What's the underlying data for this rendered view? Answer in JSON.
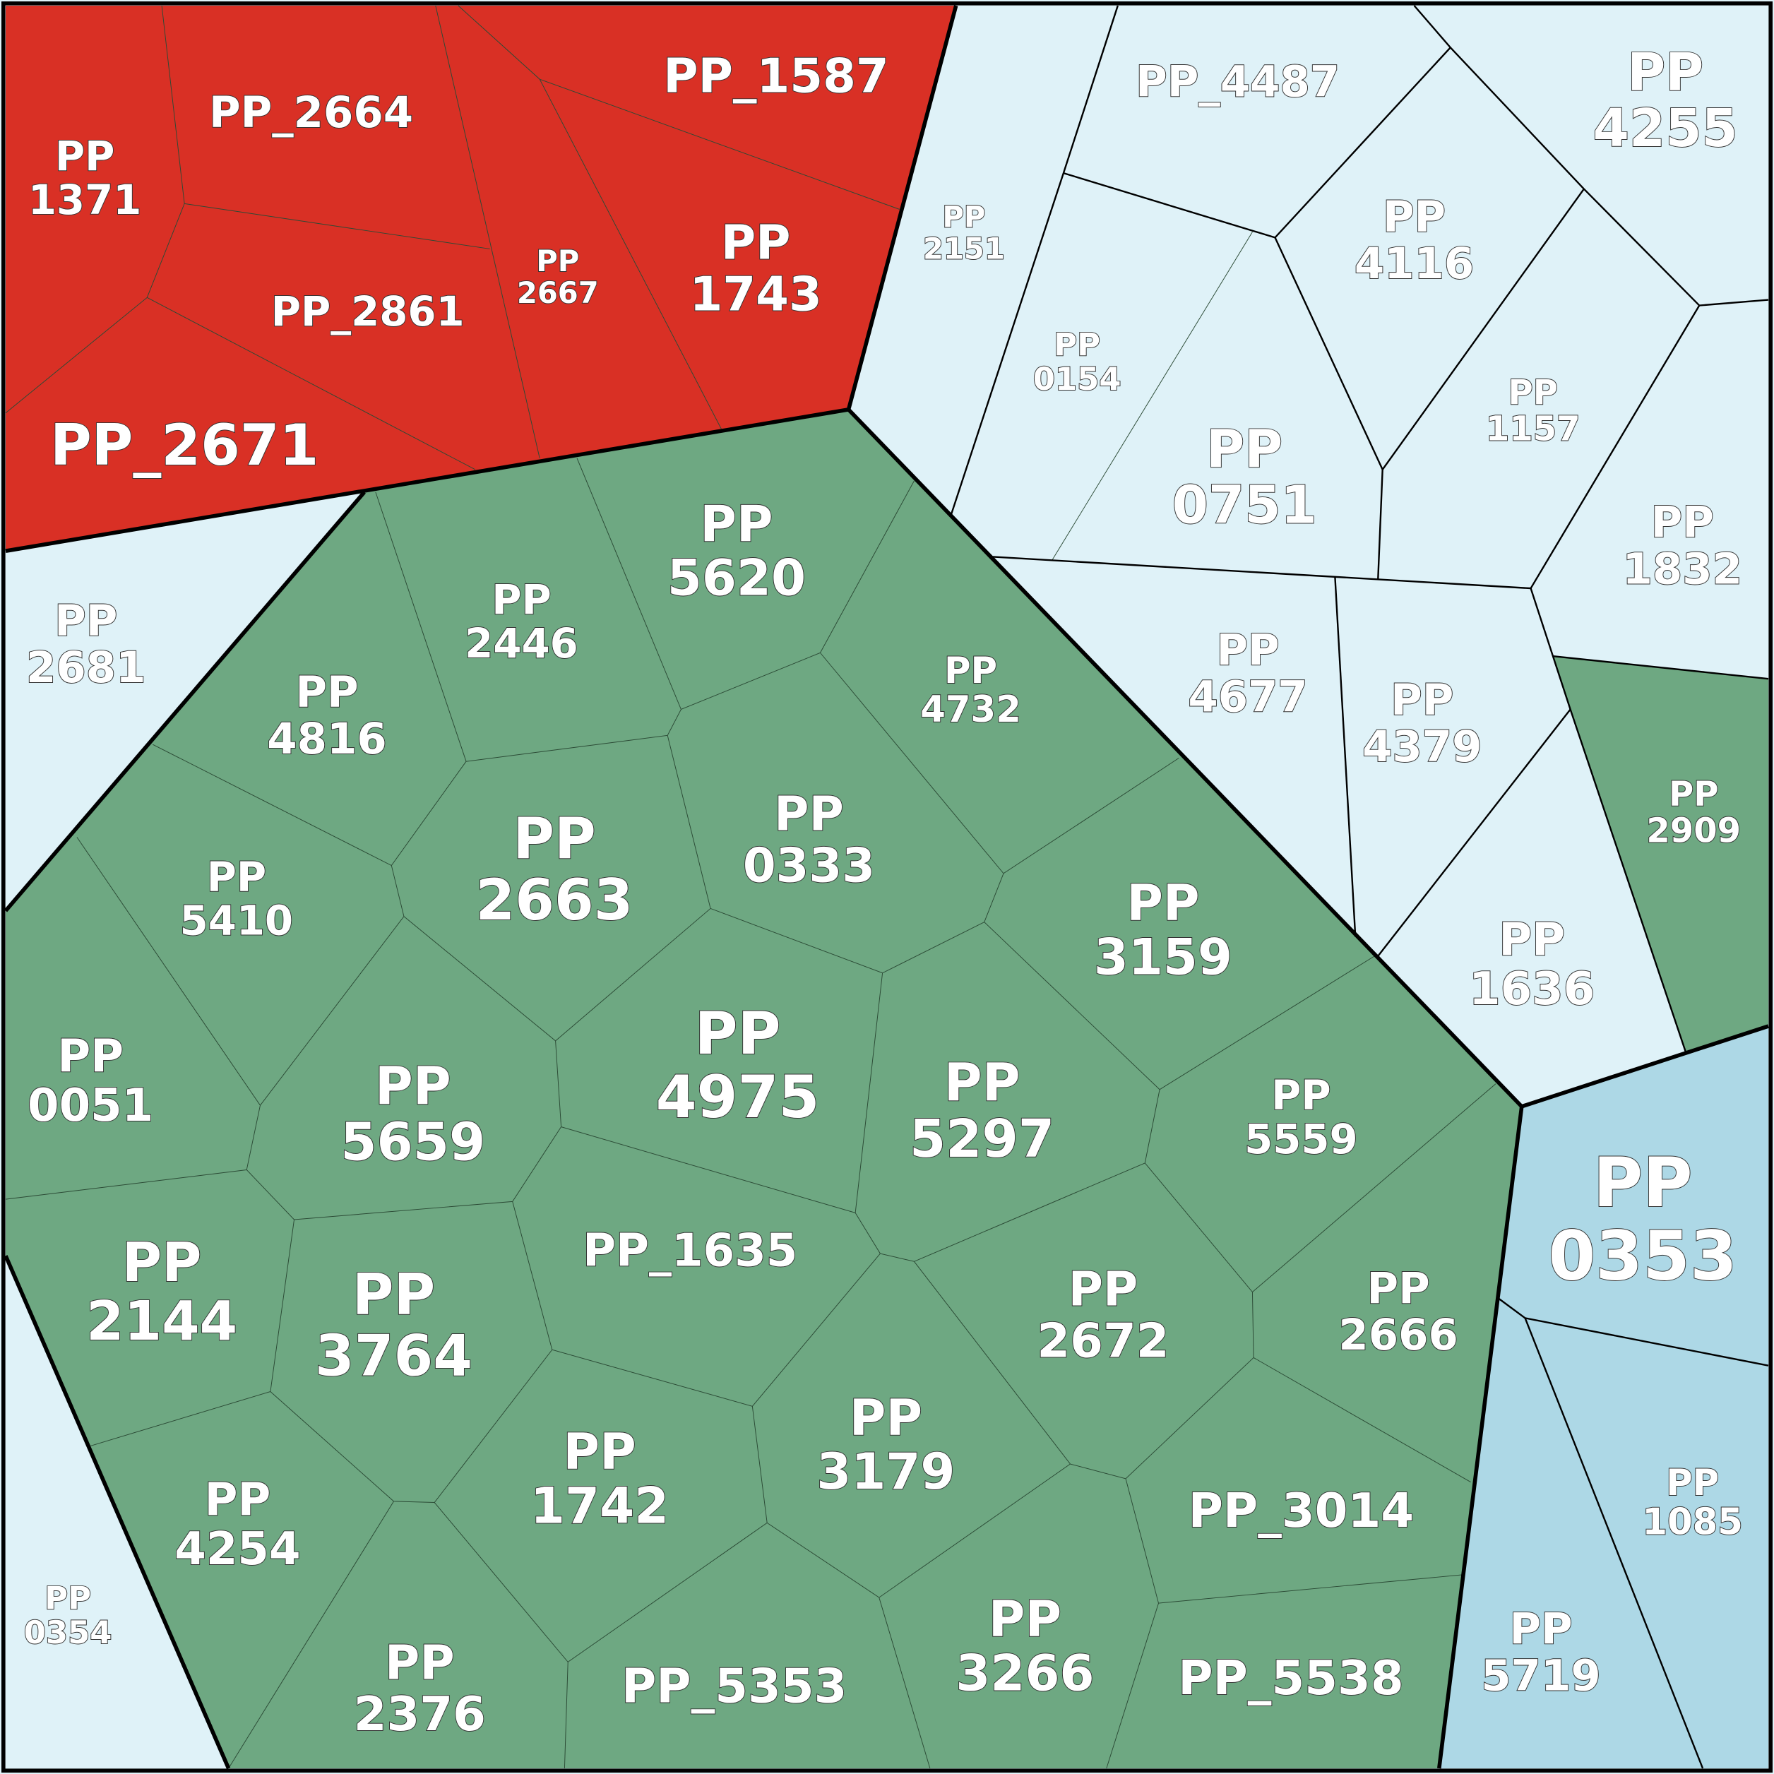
{
  "cells": [
    {
      "label": "PP_2664"
    },
    {
      "lines": [
        "PP",
        "1371"
      ]
    },
    {
      "label": "PP_1587"
    },
    {
      "lines": [
        "PP",
        "2667"
      ]
    },
    {
      "lines": [
        "PP",
        "1743"
      ]
    },
    {
      "label": "PP_2861"
    },
    {
      "label": "PP_2671"
    },
    {
      "label": "PP_4487"
    },
    {
      "lines": [
        "PP",
        "4255"
      ]
    },
    {
      "lines": [
        "PP",
        "2151"
      ]
    },
    {
      "lines": [
        "PP",
        "4116"
      ]
    },
    {
      "lines": [
        "PP",
        "0154"
      ]
    },
    {
      "lines": [
        "PP",
        "1157"
      ]
    },
    {
      "lines": [
        "PP",
        "0751"
      ]
    },
    {
      "lines": [
        "PP",
        "1832"
      ]
    },
    {
      "lines": [
        "PP",
        "4677"
      ]
    },
    {
      "lines": [
        "PP",
        "4379"
      ]
    },
    {
      "lines": [
        "PP",
        "1636"
      ]
    },
    {
      "lines": [
        "PP",
        "2681"
      ]
    },
    {
      "lines": [
        "PP",
        "0354"
      ]
    },
    {
      "lines": [
        "PP",
        "2909"
      ]
    },
    {
      "lines": [
        "PP",
        "5620"
      ]
    },
    {
      "lines": [
        "PP",
        "2446"
      ]
    },
    {
      "lines": [
        "PP",
        "4816"
      ]
    },
    {
      "lines": [
        "PP",
        "4732"
      ]
    },
    {
      "lines": [
        "PP",
        "2663"
      ]
    },
    {
      "lines": [
        "PP",
        "0333"
      ]
    },
    {
      "lines": [
        "PP",
        "5410"
      ]
    },
    {
      "lines": [
        "PP",
        "3159"
      ]
    },
    {
      "lines": [
        "PP",
        "0051"
      ]
    },
    {
      "lines": [
        "PP",
        "4975"
      ]
    },
    {
      "lines": [
        "PP",
        "5659"
      ]
    },
    {
      "lines": [
        "PP",
        "5297"
      ]
    },
    {
      "lines": [
        "PP",
        "5559"
      ]
    },
    {
      "label": "PP_1635"
    },
    {
      "lines": [
        "PP",
        "2144"
      ]
    },
    {
      "lines": [
        "PP",
        "3764"
      ]
    },
    {
      "lines": [
        "PP",
        "2672"
      ]
    },
    {
      "lines": [
        "PP",
        "2666"
      ]
    },
    {
      "lines": [
        "PP",
        "3179"
      ]
    },
    {
      "lines": [
        "PP",
        "4254"
      ]
    },
    {
      "lines": [
        "PP",
        "1742"
      ]
    },
    {
      "label": "PP_3014"
    },
    {
      "lines": [
        "PP",
        "2376"
      ]
    },
    {
      "label": "PP_5353"
    },
    {
      "lines": [
        "PP",
        "3266"
      ]
    },
    {
      "label": "PP_5538"
    },
    {
      "lines": [
        "PP",
        "0353"
      ]
    },
    {
      "lines": [
        "PP",
        "1085"
      ]
    },
    {
      "lines": [
        "PP",
        "5719"
      ]
    }
  ]
}
